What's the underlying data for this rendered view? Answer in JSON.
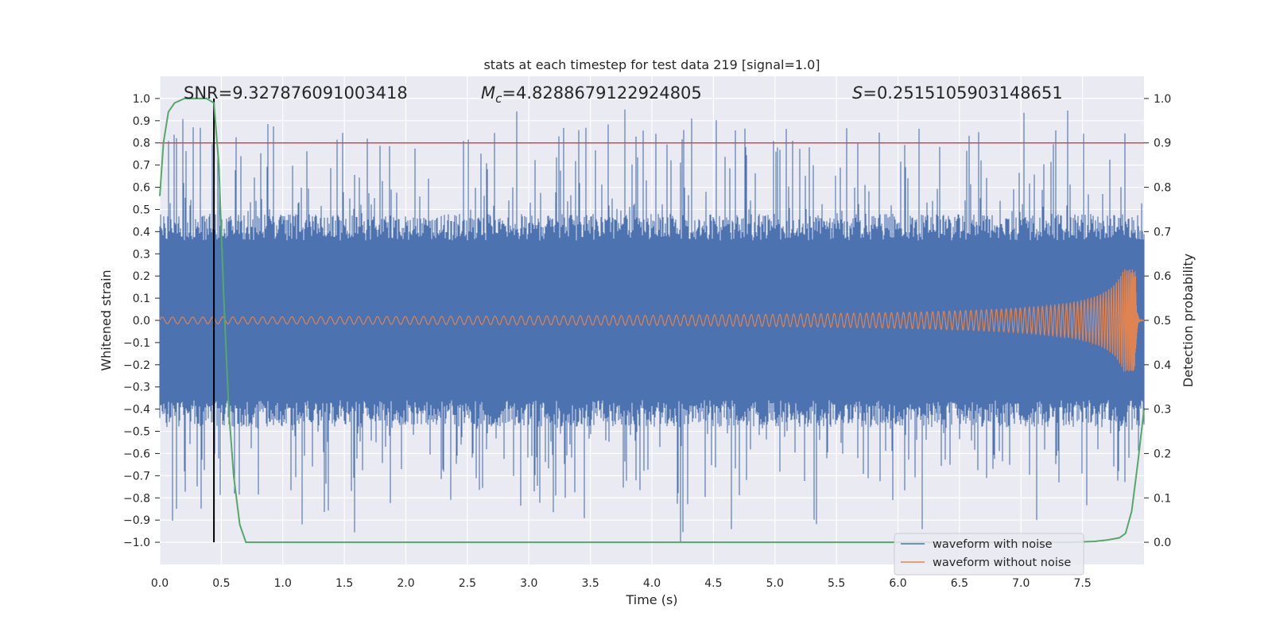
{
  "chart_data": {
    "type": "line",
    "title": "stats at each timestep for test data 219 [signal=1.0]",
    "xlabel": "Time (s)",
    "ylabel": "Whitened strain",
    "y2label": "Detection probability",
    "xlim": [
      0.0,
      8.0
    ],
    "ylim": [
      -1.1,
      1.1
    ],
    "y2lim": [
      -0.05,
      1.05
    ],
    "xticks": [
      0.0,
      0.5,
      1.0,
      1.5,
      2.0,
      2.5,
      3.0,
      3.5,
      4.0,
      4.5,
      5.0,
      5.5,
      6.0,
      6.5,
      7.0,
      7.5
    ],
    "xtick_labels": [
      "0.0",
      "0.5",
      "1.0",
      "1.5",
      "2.0",
      "2.5",
      "3.0",
      "3.5",
      "4.0",
      "4.5",
      "5.0",
      "5.5",
      "6.0",
      "6.5",
      "7.0",
      "7.5"
    ],
    "yticks": [
      1.0,
      0.9,
      0.8,
      0.7,
      0.6,
      0.5,
      0.4,
      0.3,
      0.2,
      0.1,
      0.0,
      -0.1,
      -0.2,
      -0.3,
      -0.4,
      -0.5,
      -0.6,
      -0.7,
      -0.8,
      -0.9,
      -1.0
    ],
    "ytick_labels": [
      "1.0",
      "0.9",
      "0.8",
      "0.7",
      "0.6",
      "0.5",
      "0.4",
      "0.3",
      "0.2",
      "0.1",
      "0.0",
      "−0.1",
      "−0.2",
      "−0.3",
      "−0.4",
      "−0.5",
      "−0.6",
      "−0.7",
      "−0.8",
      "−0.9",
      "−1.0"
    ],
    "y2ticks": [
      1.0,
      0.9,
      0.8,
      0.7,
      0.6,
      0.5,
      0.4,
      0.3,
      0.2,
      0.1,
      0.0
    ],
    "y2tick_labels": [
      "1.0",
      "0.9",
      "0.8",
      "0.7",
      "0.6",
      "0.5",
      "0.4",
      "0.3",
      "0.2",
      "0.1",
      "0.0"
    ],
    "annotations": {
      "snr": "SNR=9.327876091003418",
      "mc_symbol": "M",
      "mc_sub": "c",
      "mc_value": "=4.8288679122924805",
      "s_symbol": "S",
      "s_value": "=0.2515105903148651"
    },
    "threshold": {
      "value": 0.9,
      "axis": "y2",
      "color": "#c44e52"
    },
    "marker_time": 0.44,
    "series": [
      {
        "name": "waveform with noise",
        "color": "#4c72b0",
        "kind": "noise",
        "description_values": {
          "envelope_typical": 0.4,
          "spike_max": 0.97,
          "spike_min": -1.0
        }
      },
      {
        "name": "waveform without noise",
        "color": "#dd8452",
        "kind": "chirp",
        "amplitude_start": 0.015,
        "amplitude_end": 0.23,
        "merger_time": 7.93
      },
      {
        "name": "detection probability",
        "color": "#55a868",
        "axis": "y2",
        "in_legend": false,
        "x": [
          0.0,
          0.03,
          0.07,
          0.12,
          0.2,
          0.3,
          0.38,
          0.44,
          0.48,
          0.52,
          0.56,
          0.6,
          0.65,
          0.7,
          0.75,
          1.0,
          2.0,
          3.0,
          4.0,
          5.0,
          6.0,
          7.0,
          7.4,
          7.6,
          7.7,
          7.8,
          7.85,
          7.9,
          7.95,
          8.0
        ],
        "y": [
          0.78,
          0.9,
          0.97,
          0.99,
          1.0,
          1.0,
          1.0,
          0.99,
          0.85,
          0.55,
          0.3,
          0.15,
          0.04,
          0.0,
          0.0,
          0.0,
          0.0,
          0.0,
          0.0,
          0.0,
          0.0,
          0.0,
          0.0,
          0.002,
          0.005,
          0.01,
          0.02,
          0.07,
          0.18,
          0.3
        ]
      }
    ],
    "legend": {
      "position": "lower-right",
      "entries": [
        "waveform with noise",
        "waveform without noise"
      ]
    },
    "grid": true
  }
}
